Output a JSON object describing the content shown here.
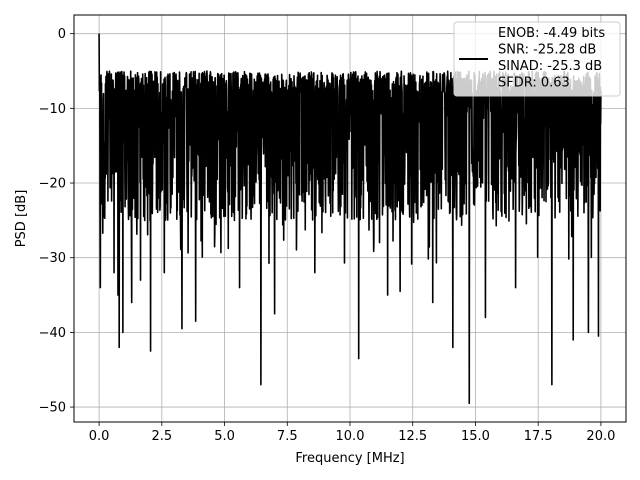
{
  "chart_data": {
    "type": "line",
    "title": "",
    "xlabel": "Frequency [MHz]",
    "ylabel": "PSD [dB]",
    "xlim": [
      -1.0,
      21.0
    ],
    "ylim": [
      -52.0,
      2.5
    ],
    "grid": true,
    "legend_position": "top-right",
    "x_ticks": [
      0.0,
      2.5,
      5.0,
      7.5,
      10.0,
      12.5,
      15.0,
      17.5,
      20.0
    ],
    "x_tick_labels": [
      "0.0",
      "2.5",
      "5.0",
      "7.5",
      "10.0",
      "12.5",
      "15.0",
      "17.5",
      "20.0"
    ],
    "y_ticks": [
      0,
      -10,
      -20,
      -30,
      -40,
      -50
    ],
    "y_tick_labels": [
      "0",
      "−10",
      "−20",
      "−30",
      "−40",
      "−50"
    ],
    "legend": {
      "lines": [
        "ENOB: -4.49 bits",
        "SNR: -25.28 dB",
        "SINAD: -25.3 dB",
        "SFDR: 0.63"
      ]
    },
    "series": [
      {
        "color": "#000000",
        "x_range": [
          0.0,
          20.0
        ],
        "num_points": 2048,
        "typical_range": [
          -25,
          -5
        ],
        "peak": {
          "x": 0.0,
          "y": 0.0
        },
        "notable_dips": [
          {
            "x": 0.05,
            "y": -34
          },
          {
            "x": 0.6,
            "y": -32
          },
          {
            "x": 0.75,
            "y": -35
          },
          {
            "x": 0.8,
            "y": -42
          },
          {
            "x": 0.95,
            "y": -40
          },
          {
            "x": 1.3,
            "y": -36
          },
          {
            "x": 1.65,
            "y": -33
          },
          {
            "x": 2.05,
            "y": -42.5
          },
          {
            "x": 2.6,
            "y": -32
          },
          {
            "x": 3.3,
            "y": -39.5
          },
          {
            "x": 3.85,
            "y": -38.5
          },
          {
            "x": 5.6,
            "y": -34
          },
          {
            "x": 6.45,
            "y": -47
          },
          {
            "x": 7.0,
            "y": -37.5
          },
          {
            "x": 8.6,
            "y": -32
          },
          {
            "x": 10.35,
            "y": -43.5
          },
          {
            "x": 11.5,
            "y": -35
          },
          {
            "x": 12.0,
            "y": -34.5
          },
          {
            "x": 13.3,
            "y": -36
          },
          {
            "x": 14.1,
            "y": -42
          },
          {
            "x": 14.75,
            "y": -49.5
          },
          {
            "x": 15.4,
            "y": -38
          },
          {
            "x": 16.6,
            "y": -34
          },
          {
            "x": 18.05,
            "y": -47
          },
          {
            "x": 18.9,
            "y": -41
          },
          {
            "x": 19.5,
            "y": -40
          },
          {
            "x": 19.9,
            "y": -40.5
          }
        ]
      }
    ]
  }
}
